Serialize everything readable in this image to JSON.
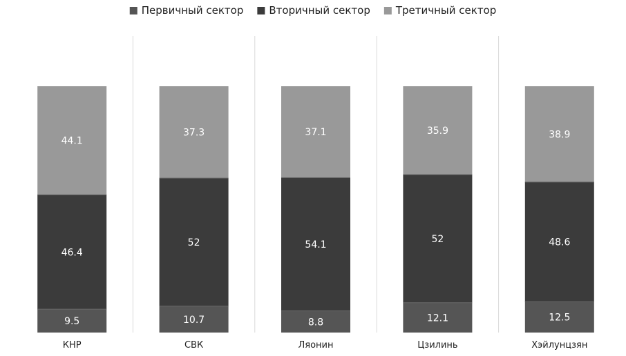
{
  "chart_data": {
    "type": "bar",
    "stacked": "percent",
    "categories": [
      "КНР",
      "СВК",
      "Ляонин",
      "Цзилинь",
      "Хэйлунцзян"
    ],
    "series": [
      {
        "name": "Первичный сектор",
        "color": "#555555",
        "values": [
          9.5,
          10.7,
          8.8,
          12.1,
          12.5
        ]
      },
      {
        "name": "Вторичный сектор",
        "color": "#3b3b3b",
        "values": [
          46.4,
          52,
          54.1,
          52,
          48.6
        ]
      },
      {
        "name": "Третичный сектор",
        "color": "#999999",
        "values": [
          44.1,
          37.3,
          37.1,
          35.9,
          38.9
        ]
      }
    ],
    "title": "",
    "xlabel": "",
    "ylabel": "",
    "legend_position": "top",
    "grid": false,
    "category_separators": true,
    "data_labels": true
  }
}
